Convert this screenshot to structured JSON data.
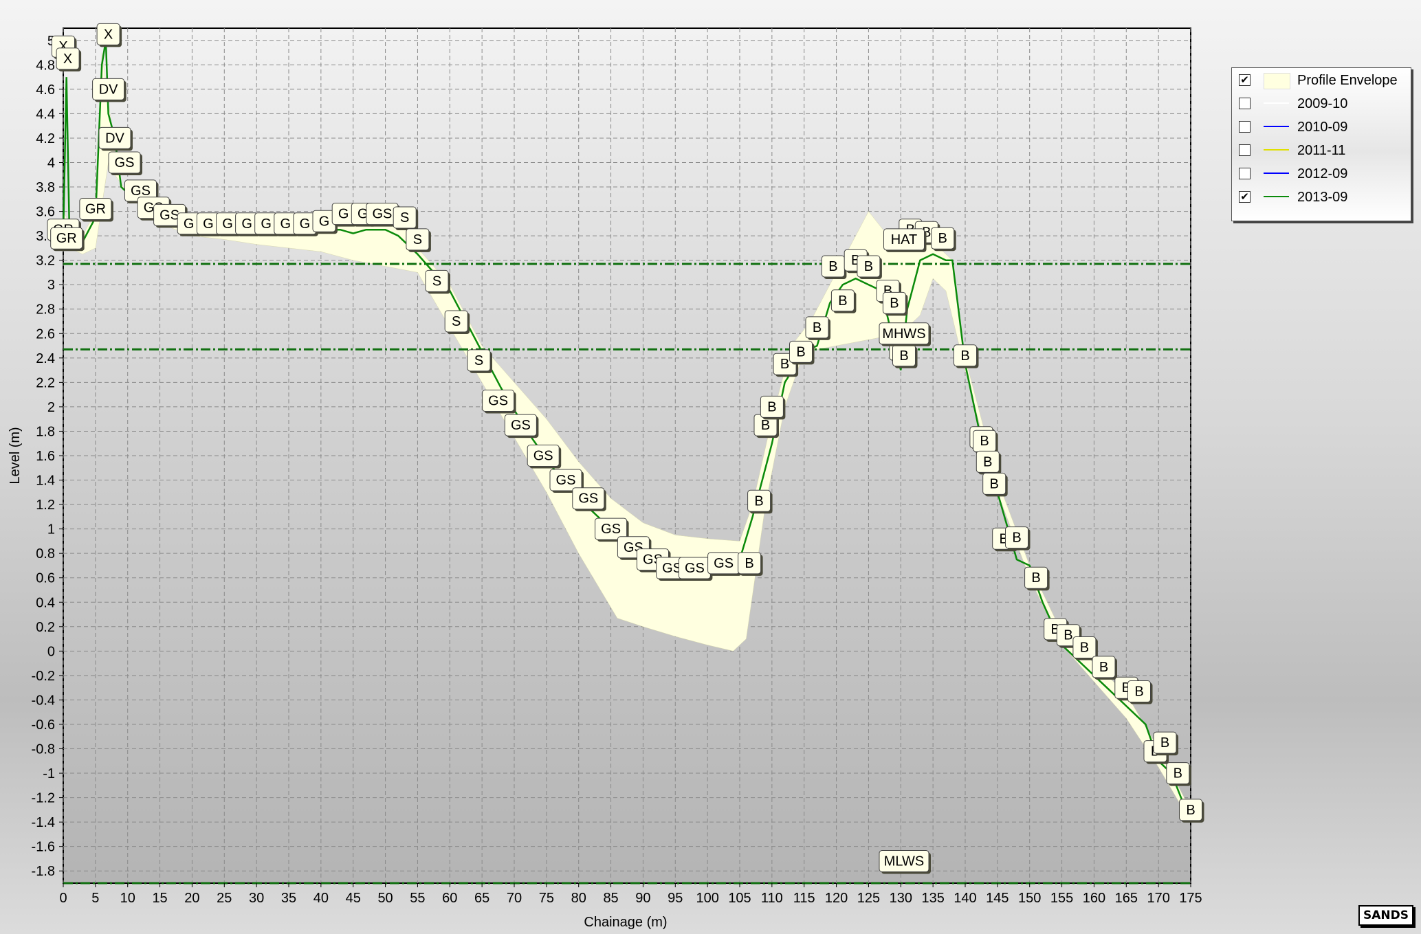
{
  "chart_data": {
    "type": "area",
    "title": "",
    "xlabel": "Chainage (m)",
    "ylabel": "Level (m)",
    "xlim": [
      0,
      175
    ],
    "ylim": [
      -1.9,
      5.1
    ],
    "x_ticks": [
      0,
      5,
      10,
      15,
      20,
      25,
      30,
      35,
      40,
      45,
      50,
      55,
      60,
      65,
      70,
      75,
      80,
      85,
      90,
      95,
      100,
      105,
      110,
      115,
      120,
      125,
      130,
      135,
      140,
      145,
      150,
      155,
      160,
      165,
      170,
      175
    ],
    "y_ticks": [
      -1.8,
      -1.6,
      -1.4,
      -1.2,
      -1,
      -0.8,
      -0.6,
      -0.4,
      -0.2,
      0,
      0.2,
      0.4,
      0.6,
      0.8,
      1,
      1.2,
      1.4,
      1.6,
      1.8,
      2,
      2.2,
      2.4,
      2.6,
      2.8,
      3,
      3.2,
      3.4,
      3.6,
      3.8,
      4,
      4.2,
      4.4,
      4.6,
      4.8,
      5
    ],
    "grid": true,
    "legend_position": "right",
    "envelope": {
      "name": "Profile Envelope",
      "color": "#ffffe0",
      "upper": [
        [
          0,
          3.6
        ],
        [
          1,
          3.5
        ],
        [
          2,
          3.5
        ],
        [
          3,
          3.4
        ],
        [
          4,
          3.5
        ],
        [
          5,
          3.55
        ],
        [
          6,
          4.9
        ],
        [
          8,
          4.1
        ],
        [
          9,
          3.8
        ],
        [
          12,
          3.7
        ],
        [
          15,
          3.6
        ],
        [
          20,
          3.55
        ],
        [
          25,
          3.5
        ],
        [
          30,
          3.5
        ],
        [
          35,
          3.5
        ],
        [
          40,
          3.55
        ],
        [
          45,
          3.55
        ],
        [
          50,
          3.6
        ],
        [
          52,
          3.55
        ],
        [
          55,
          3.3
        ],
        [
          60,
          3.0
        ],
        [
          65,
          2.5
        ],
        [
          70,
          2.2
        ],
        [
          75,
          1.9
        ],
        [
          80,
          1.55
        ],
        [
          85,
          1.25
        ],
        [
          90,
          1.05
        ],
        [
          95,
          0.95
        ],
        [
          100,
          0.92
        ],
        [
          105,
          0.9
        ],
        [
          107,
          1.2
        ],
        [
          110,
          1.9
        ],
        [
          113,
          2.5
        ],
        [
          116,
          2.7
        ],
        [
          120,
          3.1
        ],
        [
          123,
          3.4
        ],
        [
          125,
          3.6
        ],
        [
          128,
          3.4
        ],
        [
          131,
          3.45
        ],
        [
          133,
          3.4
        ],
        [
          135,
          3.4
        ],
        [
          136,
          3.3
        ],
        [
          138,
          3.2
        ],
        [
          140,
          2.4
        ],
        [
          145,
          1.4
        ],
        [
          150,
          0.7
        ],
        [
          155,
          0.15
        ],
        [
          160,
          -0.1
        ],
        [
          165,
          -0.35
        ],
        [
          170,
          -0.8
        ],
        [
          175,
          -1.3
        ]
      ],
      "lower": [
        [
          175,
          -1.4
        ],
        [
          170,
          -0.95
        ],
        [
          165,
          -0.55
        ],
        [
          160,
          -0.25
        ],
        [
          155,
          0.05
        ],
        [
          150,
          0.6
        ],
        [
          145,
          1.3
        ],
        [
          140,
          2.3
        ],
        [
          137,
          2.95
        ],
        [
          135,
          3.05
        ],
        [
          133,
          2.75
        ],
        [
          130,
          2.6
        ],
        [
          125,
          2.55
        ],
        [
          120,
          2.5
        ],
        [
          115,
          2.45
        ],
        [
          112,
          2.0
        ],
        [
          109,
          1.2
        ],
        [
          106,
          0.1
        ],
        [
          104,
          0.0
        ],
        [
          100,
          0.05
        ],
        [
          95,
          0.12
        ],
        [
          90,
          0.2
        ],
        [
          86,
          0.27
        ],
        [
          80,
          0.8
        ],
        [
          75,
          1.3
        ],
        [
          70,
          1.75
        ],
        [
          65,
          2.2
        ],
        [
          60,
          2.65
        ],
        [
          55,
          3.1
        ],
        [
          50,
          3.15
        ],
        [
          45,
          3.2
        ],
        [
          40,
          3.27
        ],
        [
          35,
          3.3
        ],
        [
          30,
          3.33
        ],
        [
          25,
          3.37
        ],
        [
          20,
          3.4
        ],
        [
          15,
          3.5
        ],
        [
          10,
          3.75
        ],
        [
          8,
          3.9
        ],
        [
          7,
          4.0
        ],
        [
          5,
          3.3
        ],
        [
          3,
          3.25
        ],
        [
          1,
          3.3
        ],
        [
          0,
          3.4
        ]
      ]
    },
    "reference_lines": [
      {
        "label": "MHWS",
        "y": 2.47,
        "color": "#107010",
        "style": "dash-dot"
      },
      {
        "label": "HAT",
        "y": 3.17,
        "color": "#107010",
        "style": "dash-dot"
      },
      {
        "label": "MLWS",
        "y": -1.9,
        "color": "#107010",
        "style": "dash-dot"
      }
    ],
    "series": [
      {
        "name": "2009-10",
        "color": "#ffffff",
        "visible": false,
        "values": []
      },
      {
        "name": "2010-09",
        "color": "#0000ff",
        "visible": false,
        "values": []
      },
      {
        "name": "2011-11",
        "color": "#e0e000",
        "visible": false,
        "values": []
      },
      {
        "name": "2012-09",
        "color": "#0000ff",
        "visible": false,
        "values": []
      },
      {
        "name": "2013-09",
        "color": "#0a8a0a",
        "visible": true,
        "values": [
          [
            0,
            3.4
          ],
          [
            0.5,
            4.7
          ],
          [
            1,
            3.3
          ],
          [
            2,
            3.35
          ],
          [
            3,
            3.35
          ],
          [
            4,
            3.45
          ],
          [
            5,
            3.55
          ],
          [
            6,
            4.8
          ],
          [
            6.6,
            5.0
          ],
          [
            7,
            4.4
          ],
          [
            8,
            4.2
          ],
          [
            9,
            3.8
          ],
          [
            12,
            3.65
          ],
          [
            15,
            3.55
          ],
          [
            20,
            3.5
          ],
          [
            25,
            3.45
          ],
          [
            30,
            3.45
          ],
          [
            35,
            3.45
          ],
          [
            40,
            3.45
          ],
          [
            43,
            3.45
          ],
          [
            45,
            3.42
          ],
          [
            47,
            3.45
          ],
          [
            50,
            3.45
          ],
          [
            52,
            3.4
          ],
          [
            55,
            3.25
          ],
          [
            60,
            2.95
          ],
          [
            65,
            2.45
          ],
          [
            68,
            2.15
          ],
          [
            72,
            1.8
          ],
          [
            76,
            1.5
          ],
          [
            80,
            1.25
          ],
          [
            84,
            1.05
          ],
          [
            88,
            0.9
          ],
          [
            92,
            0.82
          ],
          [
            96,
            0.7
          ],
          [
            99,
            0.7
          ],
          [
            102,
            0.75
          ],
          [
            105,
            0.75
          ],
          [
            107,
            1.1
          ],
          [
            110,
            1.7
          ],
          [
            112,
            2.2
          ],
          [
            115,
            2.45
          ],
          [
            117,
            2.5
          ],
          [
            119,
            2.85
          ],
          [
            121,
            3.0
          ],
          [
            123,
            3.05
          ],
          [
            125,
            3.0
          ],
          [
            127,
            2.95
          ],
          [
            129,
            2.5
          ],
          [
            130,
            2.3
          ],
          [
            131,
            2.8
          ],
          [
            133,
            3.2
          ],
          [
            135,
            3.25
          ],
          [
            137,
            3.2
          ],
          [
            138,
            3.2
          ],
          [
            140,
            2.35
          ],
          [
            143,
            1.6
          ],
          [
            145,
            1.3
          ],
          [
            148,
            0.75
          ],
          [
            150,
            0.7
          ],
          [
            152,
            0.4
          ],
          [
            155,
            0.05
          ],
          [
            158,
            -0.1
          ],
          [
            161,
            -0.25
          ],
          [
            164,
            -0.4
          ],
          [
            166,
            -0.5
          ],
          [
            168,
            -0.6
          ],
          [
            170,
            -0.9
          ],
          [
            172,
            -1.0
          ],
          [
            175,
            -1.4
          ]
        ]
      }
    ],
    "point_labels": [
      {
        "text": "X",
        "x": 7.0,
        "y": 5.05
      },
      {
        "text": "X",
        "x": 0.0,
        "y": 4.95
      },
      {
        "text": "X",
        "x": 0.7,
        "y": 4.85
      },
      {
        "text": "DV",
        "x": 7.0,
        "y": 4.6
      },
      {
        "text": "DV",
        "x": 8.0,
        "y": 4.2
      },
      {
        "text": "GS",
        "x": 9.5,
        "y": 4.0
      },
      {
        "text": "GS",
        "x": 12.0,
        "y": 3.77
      },
      {
        "text": "GS",
        "x": 14.0,
        "y": 3.63
      },
      {
        "text": "GS",
        "x": 16.5,
        "y": 3.57
      },
      {
        "text": "GR",
        "x": 5.0,
        "y": 3.62
      },
      {
        "text": "GR",
        "x": 0.0,
        "y": 3.45
      },
      {
        "text": "GR",
        "x": 0.5,
        "y": 3.38
      },
      {
        "text": "G",
        "x": 19.5,
        "y": 3.5
      },
      {
        "text": "G",
        "x": 22.5,
        "y": 3.5
      },
      {
        "text": "G",
        "x": 25.5,
        "y": 3.5
      },
      {
        "text": "G",
        "x": 28.5,
        "y": 3.5
      },
      {
        "text": "G",
        "x": 31.5,
        "y": 3.5
      },
      {
        "text": "G",
        "x": 34.5,
        "y": 3.5
      },
      {
        "text": "G",
        "x": 37.5,
        "y": 3.5
      },
      {
        "text": "G",
        "x": 40.5,
        "y": 3.52
      },
      {
        "text": "G",
        "x": 43.5,
        "y": 3.58
      },
      {
        "text": "G",
        "x": 46.5,
        "y": 3.58
      },
      {
        "text": "GS",
        "x": 49.5,
        "y": 3.58
      },
      {
        "text": "S",
        "x": 53.0,
        "y": 3.55
      },
      {
        "text": "S",
        "x": 55.0,
        "y": 3.37
      },
      {
        "text": "S",
        "x": 58.0,
        "y": 3.03
      },
      {
        "text": "S",
        "x": 61.0,
        "y": 2.7
      },
      {
        "text": "S",
        "x": 64.5,
        "y": 2.38
      },
      {
        "text": "GS",
        "x": 67.5,
        "y": 2.05
      },
      {
        "text": "GS",
        "x": 71.0,
        "y": 1.85
      },
      {
        "text": "GS",
        "x": 74.5,
        "y": 1.6
      },
      {
        "text": "GS",
        "x": 78.0,
        "y": 1.4
      },
      {
        "text": "GS",
        "x": 81.5,
        "y": 1.25
      },
      {
        "text": "GS",
        "x": 85.0,
        "y": 1.0
      },
      {
        "text": "GS",
        "x": 88.5,
        "y": 0.85
      },
      {
        "text": "GS",
        "x": 91.5,
        "y": 0.75
      },
      {
        "text": "GS",
        "x": 94.5,
        "y": 0.68
      },
      {
        "text": "GS",
        "x": 98.0,
        "y": 0.68
      },
      {
        "text": "GS",
        "x": 102.5,
        "y": 0.72
      },
      {
        "text": "B",
        "x": 106.5,
        "y": 0.72
      },
      {
        "text": "B",
        "x": 108.0,
        "y": 1.23
      },
      {
        "text": "B",
        "x": 109.0,
        "y": 1.85
      },
      {
        "text": "B",
        "x": 110.0,
        "y": 2.0
      },
      {
        "text": "B",
        "x": 112.0,
        "y": 2.35
      },
      {
        "text": "B",
        "x": 114.5,
        "y": 2.45
      },
      {
        "text": "B",
        "x": 117.0,
        "y": 2.65
      },
      {
        "text": "B",
        "x": 119.5,
        "y": 3.15
      },
      {
        "text": "B",
        "x": 121.0,
        "y": 2.87
      },
      {
        "text": "B",
        "x": 123.0,
        "y": 3.2
      },
      {
        "text": "B",
        "x": 125.0,
        "y": 3.15
      },
      {
        "text": "B",
        "x": 128.0,
        "y": 2.95
      },
      {
        "text": "B",
        "x": 129.0,
        "y": 2.85
      },
      {
        "text": "B",
        "x": 130.0,
        "y": 2.47
      },
      {
        "text": "B",
        "x": 130.5,
        "y": 2.42
      },
      {
        "text": "B",
        "x": 131.5,
        "y": 3.45
      },
      {
        "text": "B",
        "x": 134.0,
        "y": 3.43
      },
      {
        "text": "B",
        "x": 136.5,
        "y": 3.38
      },
      {
        "text": "B",
        "x": 140.0,
        "y": 2.42
      },
      {
        "text": "B",
        "x": 142.5,
        "y": 1.75
      },
      {
        "text": "B",
        "x": 143.0,
        "y": 1.72
      },
      {
        "text": "B",
        "x": 143.5,
        "y": 1.55
      },
      {
        "text": "B",
        "x": 144.5,
        "y": 1.37
      },
      {
        "text": "B",
        "x": 146.0,
        "y": 0.92
      },
      {
        "text": "B",
        "x": 148.0,
        "y": 0.93
      },
      {
        "text": "B",
        "x": 151.0,
        "y": 0.6
      },
      {
        "text": "B",
        "x": 154.0,
        "y": 0.18
      },
      {
        "text": "B",
        "x": 156.0,
        "y": 0.13
      },
      {
        "text": "B",
        "x": 158.5,
        "y": 0.03
      },
      {
        "text": "B",
        "x": 161.5,
        "y": -0.13
      },
      {
        "text": "B",
        "x": 165.0,
        "y": -0.3
      },
      {
        "text": "B",
        "x": 167.0,
        "y": -0.33
      },
      {
        "text": "B",
        "x": 169.5,
        "y": -0.82
      },
      {
        "text": "B",
        "x": 171.0,
        "y": -0.75
      },
      {
        "text": "B",
        "x": 173.0,
        "y": -1.0
      },
      {
        "text": "B",
        "x": 175.0,
        "y": -1.3
      }
    ],
    "ref_label_positions": [
      {
        "text": "HAT",
        "x": 130.5,
        "y": 3.37
      },
      {
        "text": "MHWS",
        "x": 130.5,
        "y": 2.6
      },
      {
        "text": "MLWS",
        "x": 130.5,
        "y": -1.72
      }
    ]
  },
  "legend": {
    "items": [
      {
        "label": "Profile Envelope",
        "checked": true,
        "kind": "area",
        "color": "#ffffe0"
      },
      {
        "label": "2009-10",
        "checked": false,
        "kind": "line",
        "color": "#ffffff"
      },
      {
        "label": "2010-09",
        "checked": false,
        "kind": "line",
        "color": "#0000ff"
      },
      {
        "label": "2011-11",
        "checked": false,
        "kind": "line",
        "color": "#e0e000"
      },
      {
        "label": "2012-09",
        "checked": false,
        "kind": "line",
        "color": "#0000ff"
      },
      {
        "label": "2013-09",
        "checked": true,
        "kind": "line",
        "color": "#0a8a0a"
      }
    ]
  },
  "logo": {
    "text": "SANDS"
  },
  "check_glyph": "✔"
}
